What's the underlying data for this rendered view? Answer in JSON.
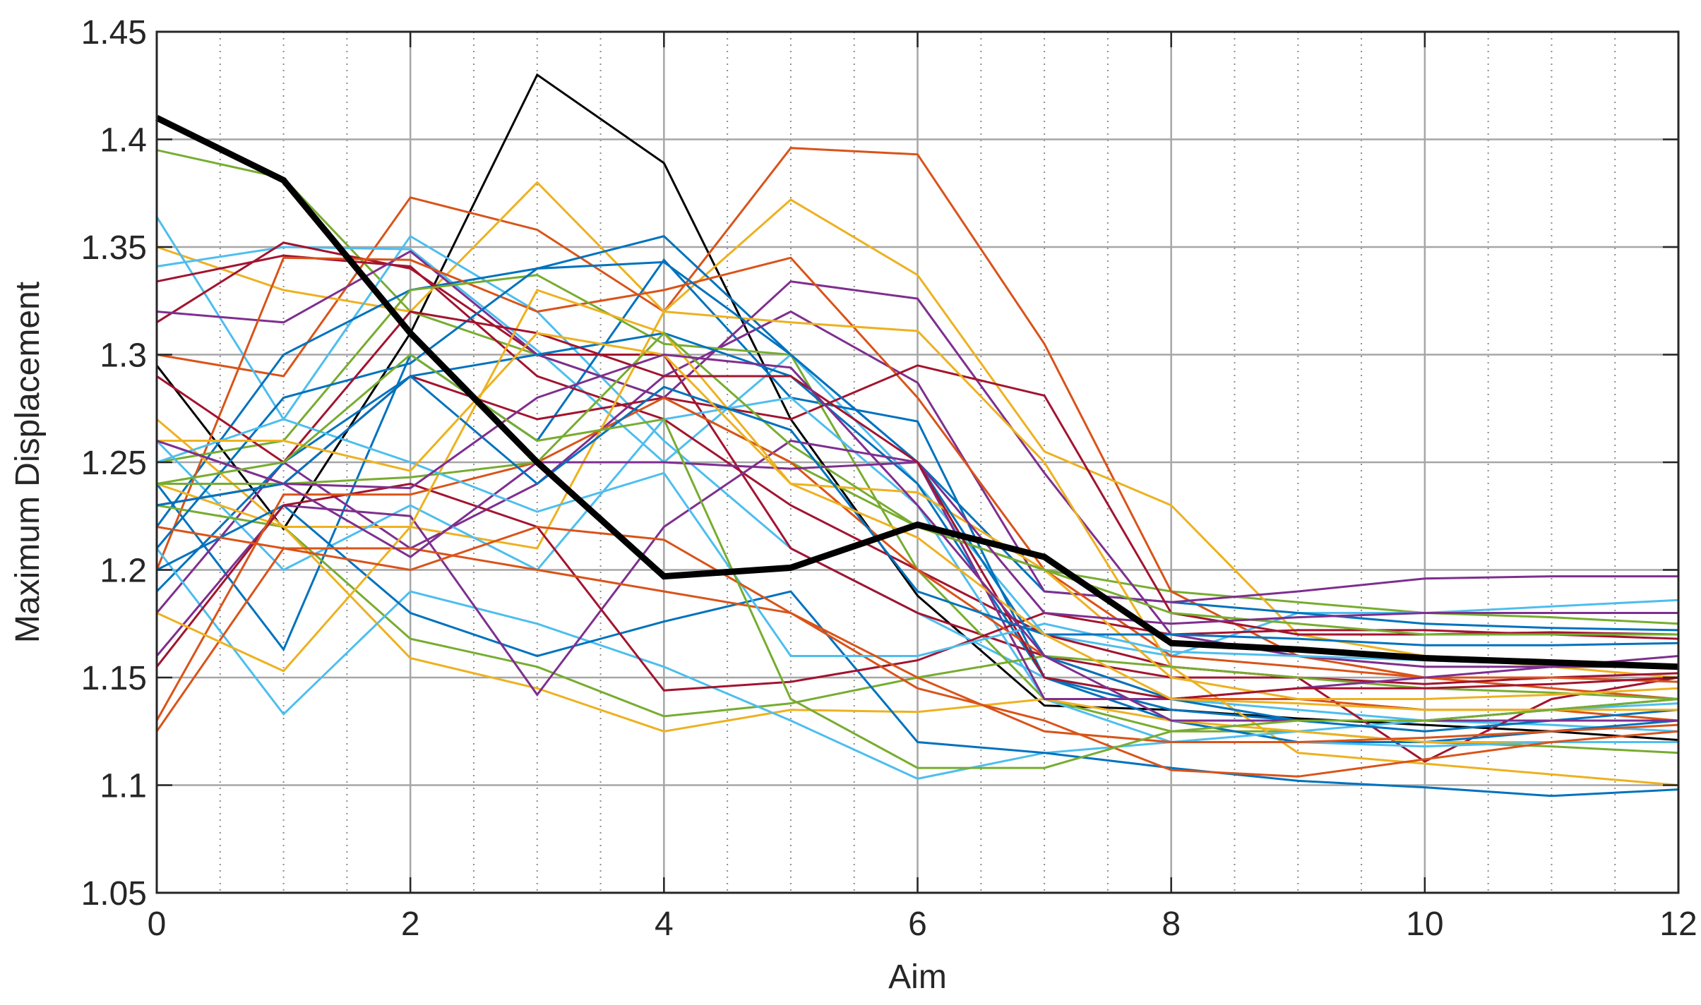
{
  "chart_data": {
    "type": "line",
    "title": "",
    "xlabel": "Aim",
    "ylabel": "Maximum Displacement",
    "xlim": [
      0,
      12
    ],
    "ylim": [
      1.05,
      1.45
    ],
    "x_ticks": [
      "0",
      "2",
      "4",
      "6",
      "8",
      "10",
      "12"
    ],
    "y_ticks": [
      "1.05",
      "1.1",
      "1.15",
      "1.2",
      "1.25",
      "1.3",
      "1.35",
      "1.4",
      "1.45"
    ],
    "grid": true,
    "minor_grid_x": true,
    "x": [
      0,
      1,
      2,
      3,
      4,
      5,
      6,
      7,
      8,
      9,
      10,
      11,
      12
    ],
    "series": [
      {
        "color": "#000000",
        "emphasis": true,
        "values": [
          1.41,
          1.381,
          1.31,
          1.25,
          1.197,
          1.201,
          1.221,
          1.206,
          1.166,
          1.163,
          1.159,
          1.157,
          1.155
        ]
      },
      {
        "color": "#000000",
        "values": [
          1.295,
          1.219,
          1.31,
          1.43,
          1.389,
          1.27,
          1.188,
          1.137,
          1.135,
          1.131,
          1.128,
          1.125,
          1.121
        ]
      },
      {
        "color": "#77ac30",
        "values": [
          1.395,
          1.382,
          1.32,
          1.3,
          1.28,
          1.25,
          1.22,
          1.2,
          1.19,
          1.185,
          1.18,
          1.178,
          1.175
        ]
      },
      {
        "color": "#d95319",
        "values": [
          1.3,
          1.29,
          1.373,
          1.358,
          1.32,
          1.396,
          1.393,
          1.305,
          1.19,
          1.16,
          1.15,
          1.145,
          1.14
        ]
      },
      {
        "color": "#edb120",
        "values": [
          1.35,
          1.33,
          1.32,
          1.38,
          1.32,
          1.372,
          1.337,
          1.255,
          1.23,
          1.17,
          1.16,
          1.155,
          1.15
        ]
      },
      {
        "color": "#4dbeee",
        "values": [
          1.364,
          1.27,
          1.355,
          1.32,
          1.26,
          1.21,
          1.18,
          1.15,
          1.14,
          1.135,
          1.13,
          1.128,
          1.125
        ]
      },
      {
        "color": "#4dbeee",
        "values": [
          1.341,
          1.35,
          1.349,
          1.302,
          1.25,
          1.3,
          1.24,
          1.17,
          1.16,
          1.18,
          1.18,
          1.183,
          1.186
        ]
      },
      {
        "color": "#0072bd",
        "values": [
          1.22,
          1.3,
          1.33,
          1.34,
          1.355,
          1.3,
          1.25,
          1.19,
          1.185,
          1.18,
          1.175,
          1.173,
          1.172
        ]
      },
      {
        "color": "#0072bd",
        "values": [
          1.24,
          1.163,
          1.3,
          1.26,
          1.344,
          1.28,
          1.269,
          1.15,
          1.135,
          1.13,
          1.13,
          1.135,
          1.14
        ]
      },
      {
        "color": "#a2142f",
        "values": [
          1.334,
          1.346,
          1.341,
          1.29,
          1.27,
          1.23,
          1.2,
          1.17,
          1.155,
          1.15,
          1.147,
          1.15,
          1.152
        ]
      },
      {
        "color": "#a2142f",
        "values": [
          1.315,
          1.352,
          1.34,
          1.3,
          1.3,
          1.21,
          1.18,
          1.16,
          1.15,
          1.15,
          1.111,
          1.14,
          1.15
        ]
      },
      {
        "color": "#7e2f8e",
        "values": [
          1.32,
          1.315,
          1.348,
          1.3,
          1.28,
          1.334,
          1.326,
          1.245,
          1.17,
          1.16,
          1.155,
          1.155,
          1.155
        ]
      },
      {
        "color": "#7e2f8e",
        "values": [
          1.18,
          1.25,
          1.21,
          1.24,
          1.29,
          1.32,
          1.287,
          1.19,
          1.185,
          1.19,
          1.196,
          1.197,
          1.197
        ]
      },
      {
        "color": "#d95319",
        "values": [
          1.2,
          1.345,
          1.344,
          1.32,
          1.33,
          1.345,
          1.28,
          1.2,
          1.16,
          1.155,
          1.15,
          1.15,
          1.148
        ]
      },
      {
        "color": "#77ac30",
        "values": [
          1.25,
          1.26,
          1.33,
          1.337,
          1.305,
          1.3,
          1.2,
          1.14,
          1.125,
          1.125,
          1.12,
          1.118,
          1.115
        ]
      },
      {
        "color": "#a2142f",
        "values": [
          1.23,
          1.24,
          1.29,
          1.27,
          1.28,
          1.27,
          1.295,
          1.281,
          1.18,
          1.17,
          1.17,
          1.171,
          1.17
        ]
      },
      {
        "color": "#edb120",
        "values": [
          1.27,
          1.22,
          1.22,
          1.21,
          1.32,
          1.315,
          1.311,
          1.25,
          1.155,
          1.115,
          1.11,
          1.105,
          1.1
        ]
      },
      {
        "color": "#0072bd",
        "values": [
          1.19,
          1.25,
          1.29,
          1.3,
          1.31,
          1.29,
          1.24,
          1.15,
          1.13,
          1.12,
          1.12,
          1.125,
          1.13
        ]
      },
      {
        "color": "#4dbeee",
        "values": [
          1.26,
          1.2,
          1.23,
          1.2,
          1.27,
          1.28,
          1.23,
          1.14,
          1.12,
          1.125,
          1.13,
          1.135,
          1.138
        ]
      },
      {
        "color": "#77ac30",
        "values": [
          1.23,
          1.22,
          1.168,
          1.155,
          1.132,
          1.138,
          1.15,
          1.16,
          1.155,
          1.15,
          1.145,
          1.143,
          1.14
        ]
      },
      {
        "color": "#edb120",
        "values": [
          1.24,
          1.22,
          1.159,
          1.145,
          1.125,
          1.135,
          1.134,
          1.14,
          1.13,
          1.125,
          1.12,
          1.12,
          1.12
        ]
      },
      {
        "color": "#4dbeee",
        "values": [
          1.21,
          1.133,
          1.19,
          1.175,
          1.155,
          1.13,
          1.103,
          1.115,
          1.12,
          1.12,
          1.118,
          1.12,
          1.12
        ]
      },
      {
        "color": "#0072bd",
        "values": [
          1.2,
          1.23,
          1.18,
          1.16,
          1.176,
          1.19,
          1.12,
          1.115,
          1.108,
          1.102,
          1.099,
          1.095,
          1.098
        ]
      },
      {
        "color": "#7e2f8e",
        "values": [
          1.16,
          1.23,
          1.225,
          1.142,
          1.22,
          1.26,
          1.25,
          1.14,
          1.14,
          1.145,
          1.15,
          1.155,
          1.16
        ]
      },
      {
        "color": "#a2142f",
        "values": [
          1.155,
          1.23,
          1.24,
          1.22,
          1.144,
          1.148,
          1.158,
          1.18,
          1.17,
          1.172,
          1.172,
          1.17,
          1.168
        ]
      },
      {
        "color": "#d95319",
        "values": [
          1.125,
          1.21,
          1.21,
          1.2,
          1.19,
          1.18,
          1.145,
          1.13,
          1.107,
          1.104,
          1.112,
          1.12,
          1.125
        ]
      },
      {
        "color": "#d95319",
        "values": [
          1.13,
          1.235,
          1.235,
          1.25,
          1.28,
          1.25,
          1.2,
          1.16,
          1.14,
          1.14,
          1.135,
          1.135,
          1.13
        ]
      },
      {
        "color": "#edb120",
        "values": [
          1.18,
          1.153,
          1.22,
          1.33,
          1.31,
          1.24,
          1.236,
          1.2,
          1.15,
          1.14,
          1.14,
          1.142,
          1.145
        ]
      },
      {
        "color": "#0072bd",
        "values": [
          1.21,
          1.28,
          1.296,
          1.34,
          1.343,
          1.3,
          1.25,
          1.16,
          1.14,
          1.13,
          1.125,
          1.13,
          1.135
        ]
      },
      {
        "color": "#77ac30",
        "values": [
          1.24,
          1.24,
          1.243,
          1.25,
          1.31,
          1.258,
          1.22,
          1.2,
          1.18,
          1.175,
          1.17,
          1.17,
          1.17
        ]
      },
      {
        "color": "#7e2f8e",
        "values": [
          1.26,
          1.24,
          1.206,
          1.25,
          1.25,
          1.247,
          1.25,
          1.18,
          1.175,
          1.178,
          1.18,
          1.18,
          1.18
        ]
      },
      {
        "color": "#a2142f",
        "values": [
          1.29,
          1.25,
          1.32,
          1.31,
          1.29,
          1.29,
          1.25,
          1.15,
          1.14,
          1.145,
          1.145,
          1.147,
          1.15
        ]
      },
      {
        "color": "#4dbeee",
        "values": [
          1.25,
          1.27,
          1.25,
          1.227,
          1.245,
          1.16,
          1.16,
          1.175,
          1.162,
          1.16,
          1.158,
          1.156,
          1.155
        ]
      },
      {
        "color": "#0072bd",
        "values": [
          1.23,
          1.24,
          1.29,
          1.24,
          1.285,
          1.265,
          1.19,
          1.17,
          1.17,
          1.168,
          1.165,
          1.165,
          1.166
        ]
      },
      {
        "color": "#edb120",
        "values": [
          1.26,
          1.26,
          1.246,
          1.31,
          1.3,
          1.24,
          1.215,
          1.17,
          1.14,
          1.138,
          1.135,
          1.135,
          1.135
        ]
      },
      {
        "color": "#7e2f8e",
        "values": [
          1.26,
          1.24,
          1.238,
          1.28,
          1.3,
          1.294,
          1.23,
          1.16,
          1.13,
          1.13,
          1.13,
          1.13,
          1.13
        ]
      },
      {
        "color": "#d95319",
        "values": [
          1.22,
          1.21,
          1.2,
          1.22,
          1.214,
          1.18,
          1.15,
          1.125,
          1.12,
          1.12,
          1.122,
          1.125,
          1.128
        ]
      },
      {
        "color": "#77ac30",
        "values": [
          1.24,
          1.25,
          1.3,
          1.26,
          1.27,
          1.14,
          1.108,
          1.108,
          1.125,
          1.13,
          1.13,
          1.135,
          1.14
        ]
      }
    ]
  }
}
